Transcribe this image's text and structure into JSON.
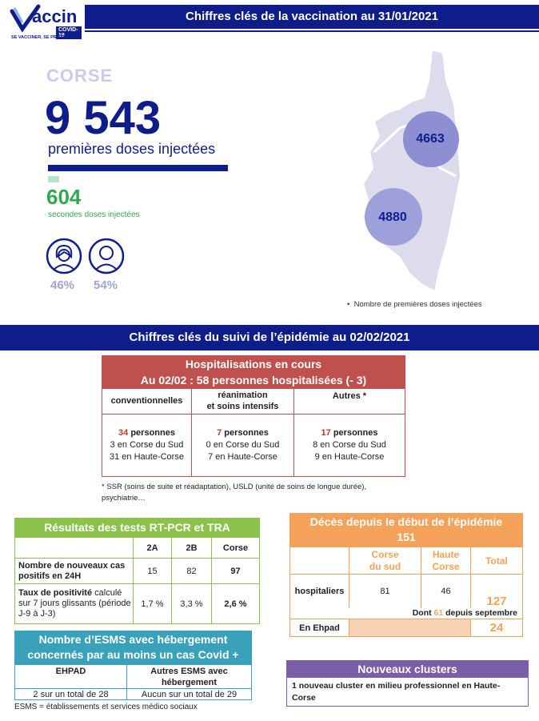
{
  "logo": {
    "word": "accin",
    "covid": "COVID-19",
    "tagline": "SE VACCINER, SE PROTÉGER"
  },
  "header": {
    "title": "Chiffres clés  de la vaccination au 31/01/2021"
  },
  "region": "CORSE",
  "first_doses": {
    "value": "9 543",
    "label": "premières doses injectées"
  },
  "second_doses": {
    "value": "604",
    "label": "secondes doses injectées"
  },
  "gender": {
    "female_pct": "46%",
    "male_pct": "54%"
  },
  "map": {
    "north_value": "4663",
    "south_value": "4880",
    "legend": "Nombre de premières doses injectées"
  },
  "epidemic_banner": "Chiffres clés du suivi de l’épidémie  au 02/02/2021",
  "hospital": {
    "title": "Hospitalisations en cours",
    "subtitle": "Au 02/02 : 58 personnes hospitalisées (- 3)",
    "columns": [
      {
        "head": "conventionnelles",
        "count": "34",
        "unit": " personnes",
        "line1": "3 en Corse du Sud",
        "line2": "31 en Haute-Corse"
      },
      {
        "head": "réanimation\net soins intensifs",
        "count": "7",
        "unit": " personnes",
        "line1": "0 en Corse du Sud",
        "line2": "7 en Haute-Corse"
      },
      {
        "head": "Autres *",
        "count": "17",
        "unit": " personnes",
        "line1": "8 en Corse du Sud",
        "line2": "9 en Haute-Corse"
      }
    ],
    "footnote": "* SSR (soins de suite et réadaptation), USLD (unité de soins de longue durée), psychiatrie…"
  },
  "tests": {
    "title": "Résultats des tests RT-PCR et TRA",
    "headers": [
      "2A",
      "2B",
      "Corse"
    ],
    "row1": {
      "label": "Nombre de nouveaux cas positifs en 24H",
      "values": [
        "15",
        "82",
        "97"
      ]
    },
    "row2": {
      "label_bold": "Taux de positivité",
      "label_rest": " calculé sur 7 jours glissants (période J-9 à J-3)",
      "values": [
        "1,7 %",
        "3,3 %",
        "2,6 %"
      ]
    }
  },
  "deaths": {
    "title": "Décès depuis le début de l’épidémie",
    "total": "151",
    "col_south": "Corse\ndu sud",
    "col_north": "Haute\nCorse",
    "col_total": "Total",
    "hosp_label": "hospitaliers",
    "hosp_south": "81",
    "hosp_north": "46",
    "hosp_total": "127",
    "dont_prefix": "Dont ",
    "dont_value": "61",
    "dont_suffix": " depuis septembre",
    "ehpad_label": "En Ehpad",
    "ehpad_total": "24"
  },
  "esms": {
    "title": "Nombre d’ESMS avec hébergement concernés par au moins un cas Covid +",
    "col1": "EHPAD",
    "col2": "Autres ESMS avec hébergement",
    "val1": "2 sur un total de 28",
    "val2": "Aucun sur un total de 29",
    "footnote": "ESMS = établissements et services médico sociaux"
  },
  "clusters": {
    "title": "Nouveaux clusters",
    "text": "1 nouveau cluster en milieu professionnel en Haute-Corse"
  },
  "colors": {
    "navy": "#0f1d8a",
    "red": "#c0392b",
    "green": "#8bc34a",
    "orange": "#f4a259",
    "teal": "#3aa1bb",
    "purple": "#7c5ea8"
  }
}
